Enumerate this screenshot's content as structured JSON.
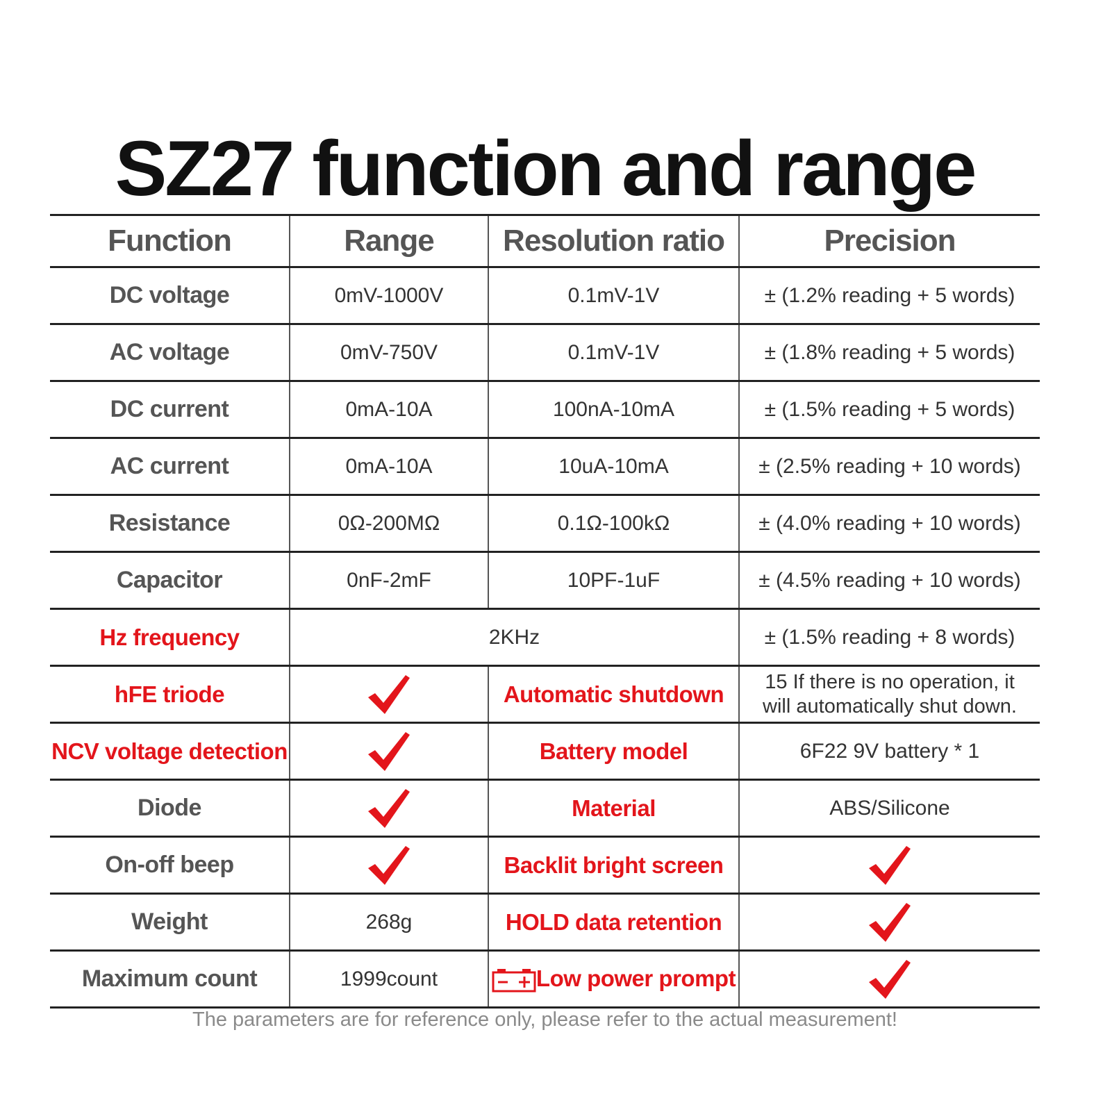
{
  "header": {
    "title": "SZ27 function and range"
  },
  "table": {
    "columns": [
      "Function",
      "Range",
      "Resolution ratio",
      "Precision"
    ],
    "rows": [
      [
        "DC voltage",
        "0mV-1000V",
        "0.1mV-1V",
        "± (1.2% reading + 5 words)"
      ],
      [
        "AC voltage",
        "0mV-750V",
        "0.1mV-1V",
        "± (1.8% reading + 5 words)"
      ],
      [
        "DC current",
        "0mA-10A",
        "100nA-10mA",
        "± (1.5% reading + 5 words)"
      ],
      [
        "AC current",
        "0mA-10A",
        "10uA-10mA",
        "± (2.5% reading + 10 words)"
      ],
      [
        "Resistance",
        "0Ω-200MΩ",
        "0.1Ω-100kΩ",
        "± (4.0% reading + 10 words)"
      ],
      [
        "Capacitor",
        "0nF-2mF",
        "10PF-1uF",
        "± (4.5% reading + 10 words)"
      ],
      [
        "Hz frequency",
        "2KHz",
        "± (1.5% reading + 8 words)"
      ],
      [
        "hFE triode",
        "Automatic shutdown",
        "15 If there is no operation, it will automatically shut down."
      ],
      [
        "NCV voltage detection",
        "Battery model",
        "6F22 9V battery * 1"
      ],
      [
        "Diode",
        "Material",
        "ABS/Silicone"
      ],
      [
        "On-off beep",
        "Backlit bright screen"
      ],
      [
        "Weight",
        "268g",
        "HOLD data retention"
      ],
      [
        "Maximum count",
        "1999count",
        "Low power prompt"
      ]
    ]
  },
  "footer": {
    "note": "The parameters are for reference only, please refer to the actual measurement!"
  }
}
